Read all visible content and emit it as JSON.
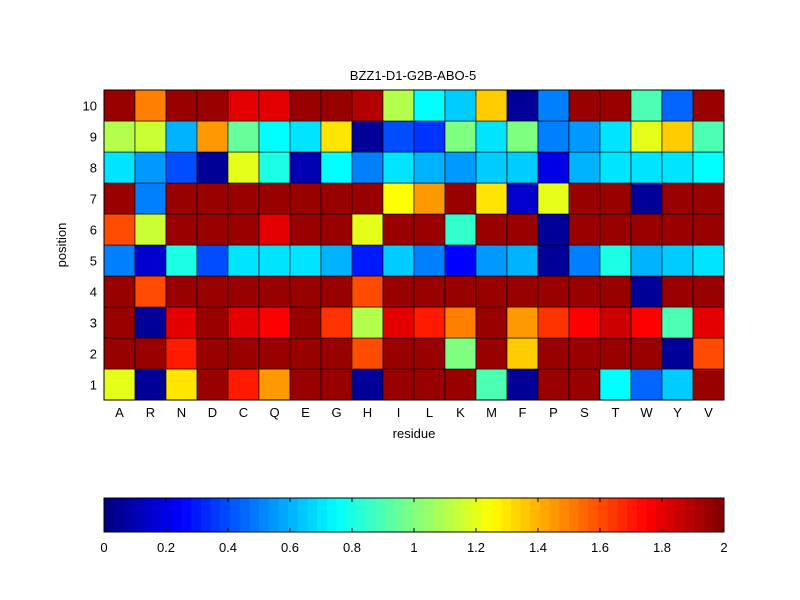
{
  "chart_data": {
    "type": "heatmap",
    "title": "BZZ1-D1-G2B-ABO-5",
    "xlabel": "residue",
    "ylabel": "position",
    "x": [
      "A",
      "R",
      "N",
      "D",
      "C",
      "Q",
      "E",
      "G",
      "H",
      "I",
      "L",
      "K",
      "M",
      "F",
      "P",
      "S",
      "T",
      "W",
      "Y",
      "V"
    ],
    "y": [
      "1",
      "2",
      "3",
      "4",
      "5",
      "6",
      "7",
      "8",
      "9",
      "10"
    ],
    "values": [
      [
        1.2,
        0.05,
        1.3,
        1.95,
        1.7,
        1.45,
        1.95,
        1.95,
        0.05,
        1.95,
        1.95,
        1.95,
        0.9,
        0.05,
        1.95,
        1.95,
        0.75,
        0.45,
        0.65,
        1.95
      ],
      [
        1.95,
        1.95,
        1.7,
        1.95,
        1.95,
        1.95,
        1.95,
        1.95,
        1.6,
        1.95,
        1.95,
        1.0,
        1.95,
        1.35,
        1.95,
        1.95,
        1.95,
        1.95,
        0.05,
        1.6
      ],
      [
        1.95,
        0.05,
        1.8,
        1.95,
        1.8,
        1.75,
        1.95,
        1.65,
        1.1,
        1.8,
        1.7,
        1.5,
        1.95,
        1.45,
        1.65,
        1.75,
        1.85,
        1.75,
        0.9,
        1.8
      ],
      [
        1.95,
        1.6,
        1.95,
        1.95,
        1.95,
        1.95,
        1.95,
        1.95,
        1.6,
        1.95,
        1.95,
        1.95,
        1.95,
        1.95,
        1.95,
        1.95,
        1.95,
        0.05,
        1.95,
        1.95
      ],
      [
        0.5,
        0.15,
        0.8,
        0.4,
        0.7,
        0.7,
        0.7,
        0.6,
        0.3,
        0.65,
        0.5,
        0.25,
        0.55,
        0.6,
        0.05,
        0.5,
        0.8,
        0.6,
        0.65,
        0.7
      ],
      [
        1.6,
        1.15,
        1.95,
        1.95,
        1.95,
        1.8,
        1.95,
        1.95,
        1.2,
        1.95,
        1.95,
        0.85,
        1.95,
        1.95,
        0.05,
        1.95,
        1.95,
        1.95,
        1.95,
        1.95
      ],
      [
        1.95,
        0.5,
        1.95,
        1.95,
        1.95,
        1.95,
        1.95,
        1.95,
        1.95,
        1.25,
        1.45,
        1.95,
        1.3,
        0.15,
        1.2,
        1.95,
        1.95,
        0.05,
        1.95,
        1.95
      ],
      [
        0.7,
        0.55,
        0.4,
        0.05,
        1.2,
        0.8,
        0.1,
        0.75,
        0.5,
        0.7,
        0.6,
        0.55,
        0.65,
        0.65,
        0.2,
        0.6,
        0.7,
        0.7,
        0.7,
        0.75
      ],
      [
        1.1,
        1.15,
        0.6,
        1.45,
        0.95,
        0.75,
        0.7,
        1.3,
        0.05,
        0.4,
        0.35,
        1.0,
        0.7,
        1.0,
        0.5,
        0.55,
        0.7,
        1.2,
        1.35,
        0.9
      ],
      [
        1.95,
        1.5,
        1.95,
        1.95,
        1.8,
        1.8,
        1.95,
        1.95,
        1.9,
        1.1,
        0.75,
        0.65,
        1.35,
        0.05,
        0.5,
        1.95,
        1.95,
        0.9,
        0.45,
        1.95
      ]
    ],
    "colorbar": {
      "min": 0,
      "max": 2,
      "colormap": "jet",
      "ticks": [
        "0",
        "0.2",
        "0.4",
        "0.6",
        "0.8",
        "1",
        "1.2",
        "1.4",
        "1.6",
        "1.8",
        "2"
      ]
    },
    "grid": true
  }
}
